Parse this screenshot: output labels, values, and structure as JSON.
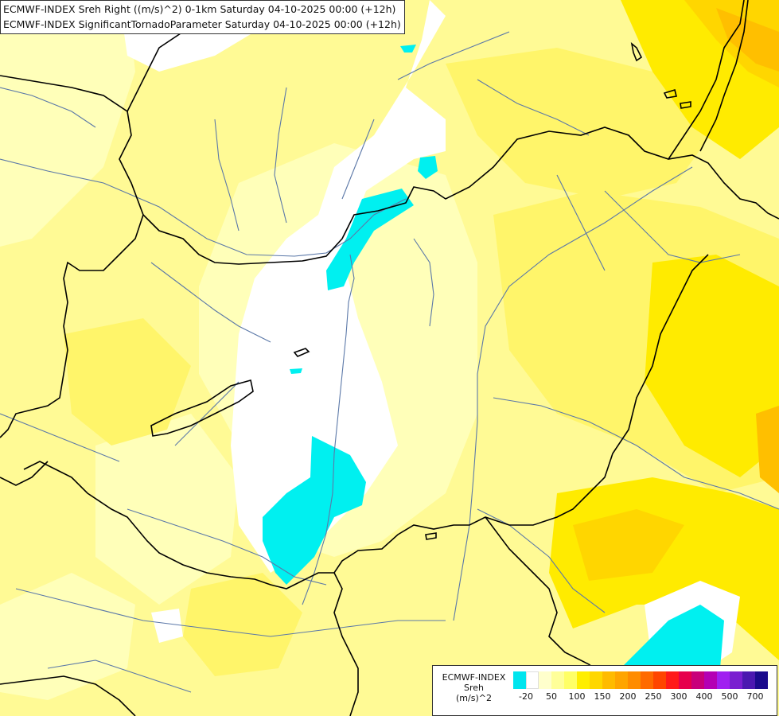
{
  "titles": [
    "ECMWF-INDEX Sreh Right ((m/s)^2) 0-1km Saturday 04-10-2025 00:00 (+12h)",
    "ECMWF-INDEX SignificantTornadoParameter Saturday 04-10-2025 00:00 (+12h)"
  ],
  "legend": {
    "title_line1": "ECMWF-INDEX",
    "title_line2": "Sreh",
    "units": "(m/s)^2",
    "colors": [
      "#00e5ee",
      "#ffffff",
      "#ffffcc",
      "#ffff99",
      "#ffff66",
      "#ffee00",
      "#ffd700",
      "#ffbb00",
      "#ffa500",
      "#ff8c00",
      "#ff6a00",
      "#ff4500",
      "#ff1a1a",
      "#e6004c",
      "#c8007a",
      "#b400b4",
      "#a020f0",
      "#7a1fd0",
      "#4b18b0",
      "#1a0a8c"
    ],
    "ticks": [
      "-20",
      "50",
      "100",
      "150",
      "200",
      "250",
      "300",
      "400",
      "500",
      "700"
    ]
  },
  "map_colors": {
    "pale": "#ffffb9",
    "light": "#fffa95",
    "mid": "#fff56a",
    "yellow": "#ffeb00",
    "gold": "#ffd600",
    "orange": "#ffbf00",
    "cyan": "#00f0f0",
    "white": "#ffffff",
    "rivers": "#5b78a8",
    "borders": "#000000"
  }
}
